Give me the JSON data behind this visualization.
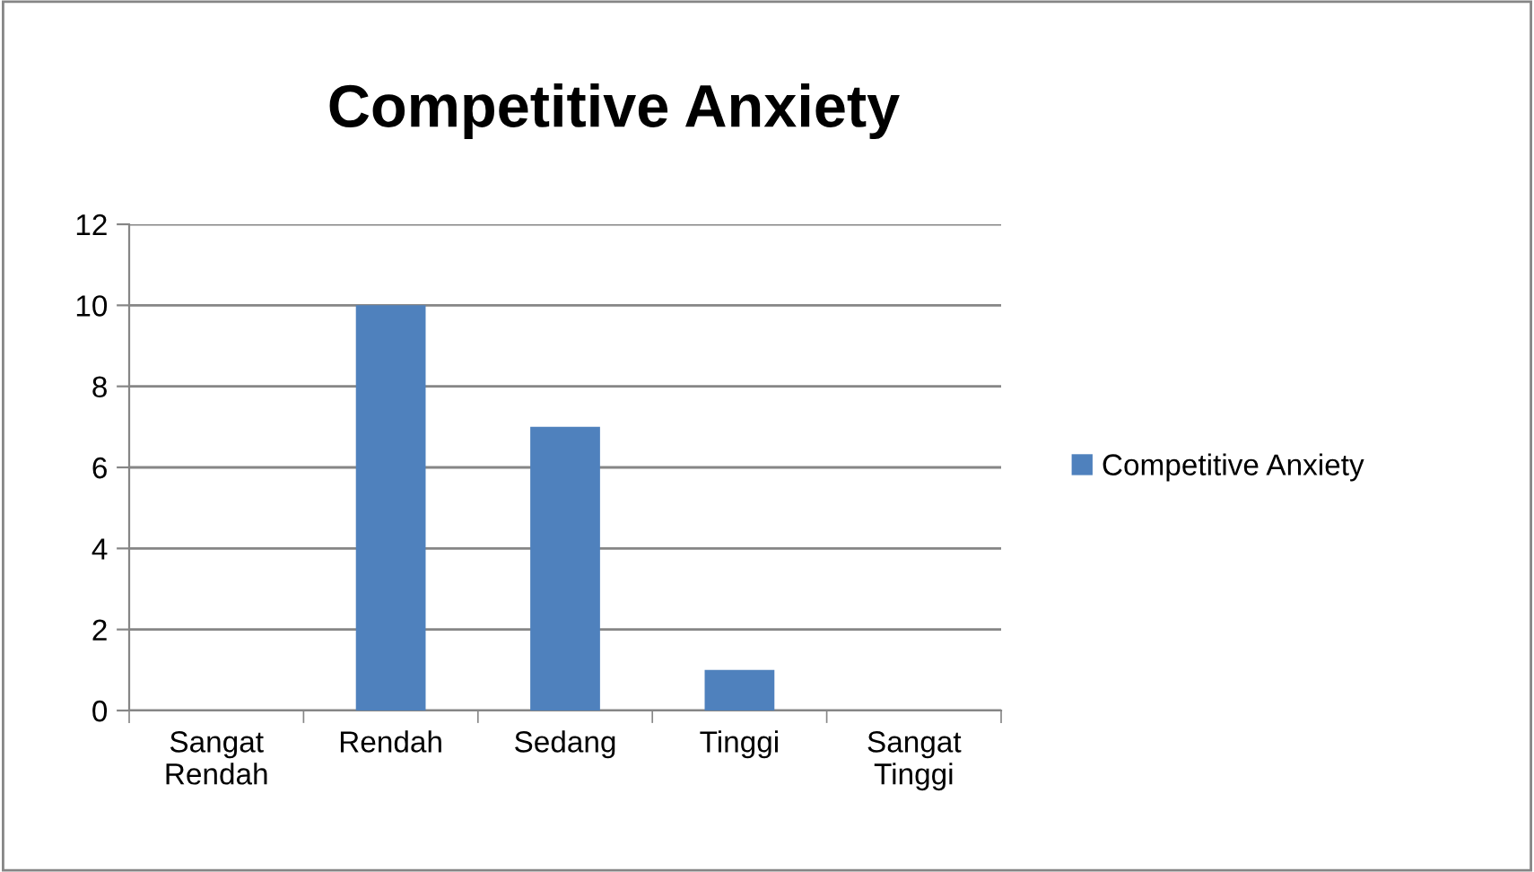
{
  "chart_data": {
    "type": "bar",
    "title": "Competitive Anxiety",
    "categories": [
      "Sangat Rendah",
      "Rendah",
      "Sedang",
      "Tinggi",
      "Sangat Tinggi"
    ],
    "series": [
      {
        "name": "Competitive Anxiety",
        "color": "#4f81bd",
        "values": [
          0,
          10,
          7,
          1,
          0
        ]
      }
    ],
    "ylim": [
      0,
      12
    ],
    "yticks": [
      0,
      2,
      4,
      6,
      8,
      10,
      12
    ],
    "grid": "y",
    "legend": "right"
  }
}
